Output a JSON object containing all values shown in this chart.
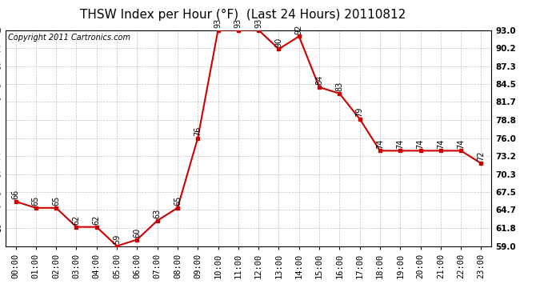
{
  "title": "THSW Index per Hour (°F)  (Last 24 Hours) 20110812",
  "copyright": "Copyright 2011 Cartronics.com",
  "hours": [
    "00:00",
    "01:00",
    "02:00",
    "03:00",
    "04:00",
    "05:00",
    "06:00",
    "07:00",
    "08:00",
    "09:00",
    "10:00",
    "11:00",
    "12:00",
    "13:00",
    "14:00",
    "15:00",
    "16:00",
    "17:00",
    "18:00",
    "19:00",
    "20:00",
    "21:00",
    "22:00",
    "23:00"
  ],
  "values": [
    66,
    65,
    65,
    62,
    62,
    59,
    60,
    63,
    65,
    76,
    93,
    93,
    93,
    90,
    92,
    84,
    83,
    79,
    74,
    74,
    74,
    74,
    74,
    72
  ],
  "ymin": 59.0,
  "ymax": 93.0,
  "yticks": [
    59.0,
    61.8,
    64.7,
    67.5,
    70.3,
    73.2,
    76.0,
    78.8,
    81.7,
    84.5,
    87.3,
    90.2,
    93.0
  ],
  "ytick_labels": [
    "59.0",
    "61.8",
    "64.7",
    "67.5",
    "70.3",
    "73.2",
    "76.0",
    "78.8",
    "81.7",
    "84.5",
    "87.3",
    "90.2",
    "93.0"
  ],
  "line_color": "#cc0000",
  "marker_color": "#cc0000",
  "bg_color": "#ffffff",
  "grid_color": "#b0b0b0",
  "title_fontsize": 11,
  "copyright_fontsize": 7,
  "label_fontsize": 7.5,
  "annot_fontsize": 7
}
